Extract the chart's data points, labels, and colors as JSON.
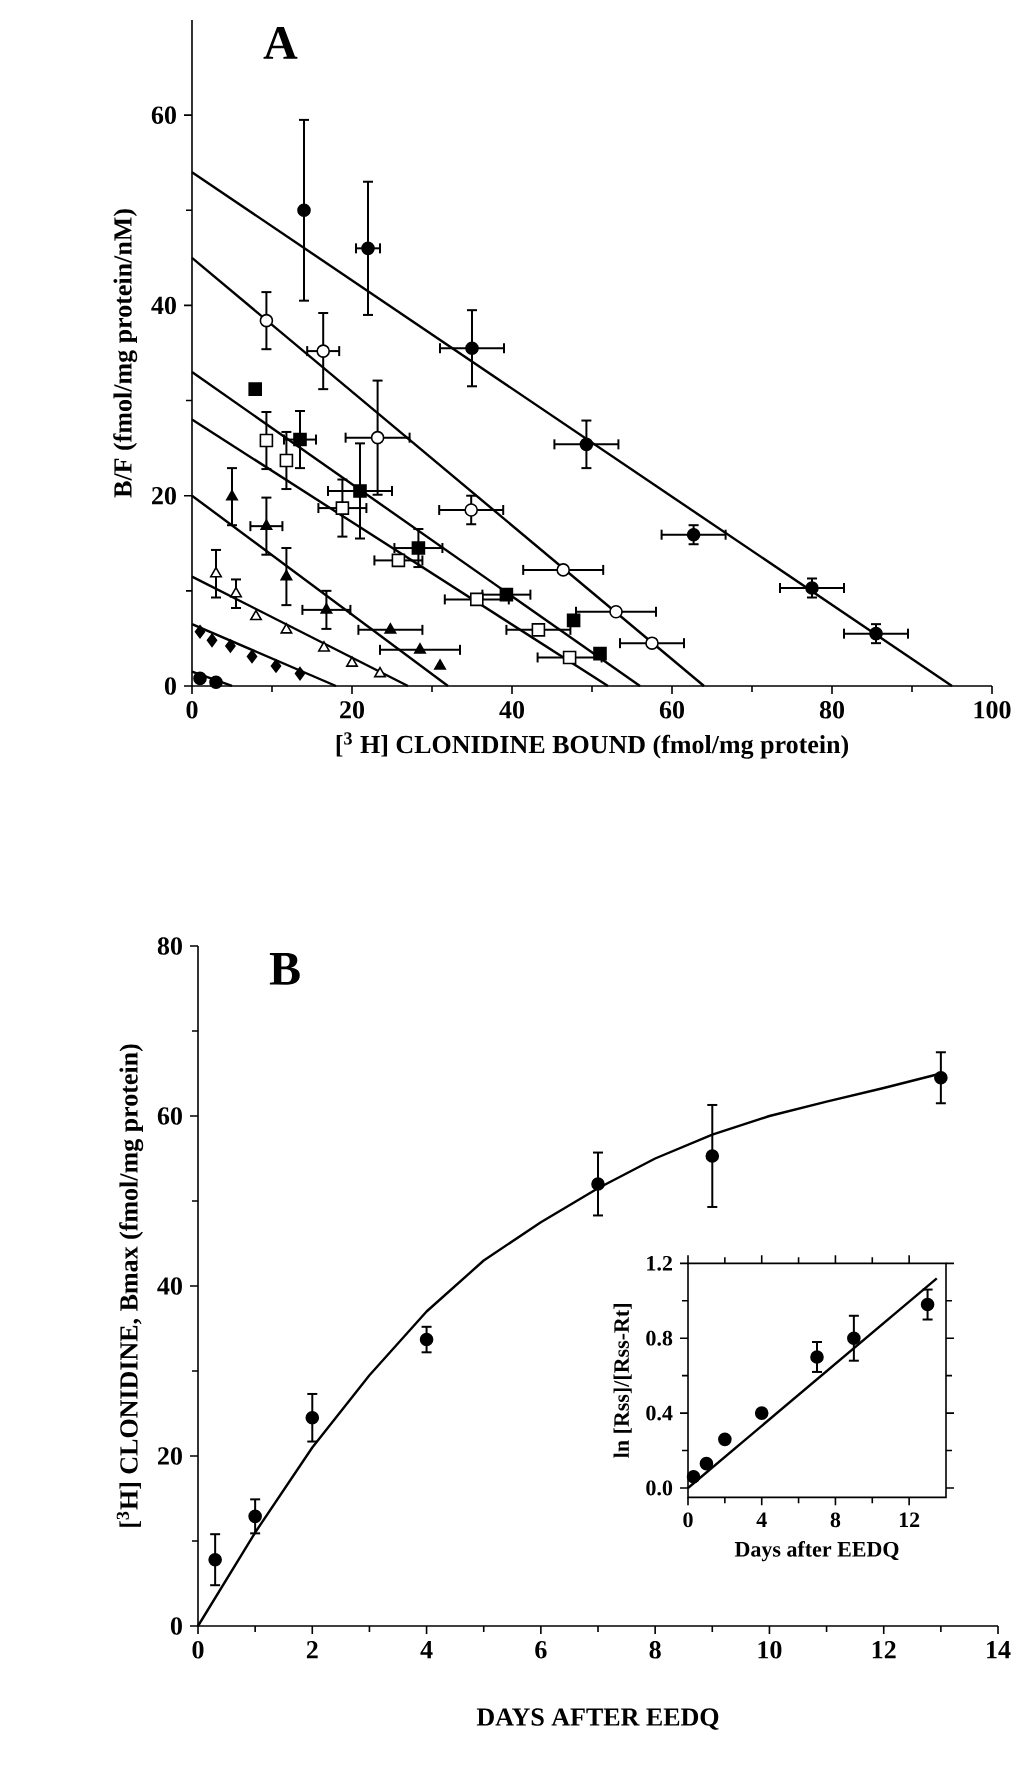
{
  "chart_data": [
    {
      "type": "scatter",
      "title": "A",
      "xlabel": "[$^{3}$ H] CLONIDINE BOUND (fmol/mg protein)",
      "ylabel": "B/F (fmol/mg protein/nM)",
      "xlim": [
        0,
        100
      ],
      "ylim": [
        0,
        70
      ],
      "xticks": [
        0,
        20,
        40,
        60,
        80,
        100
      ],
      "yticks": [
        0,
        20,
        40,
        60
      ],
      "grid": false,
      "series": [
        {
          "color": "#000000",
          "marker": "circle",
          "x": [
            14,
            22,
            35,
            49.3,
            62.7,
            77.5,
            85.5
          ],
          "values": [
            50,
            46,
            35.5,
            25.4,
            15.9,
            10.3,
            5.5
          ],
          "errors": [
            9.5,
            7,
            4,
            2.5,
            1,
            1,
            1
          ],
          "xerrors": [
            null,
            1.5,
            4,
            4,
            4,
            4,
            4
          ]
        },
        {
          "color": "#ffffff",
          "marker": "circle",
          "x": [
            9.3,
            16.4,
            23.2,
            34.9,
            46.4,
            53,
            57.5
          ],
          "values": [
            38.4,
            35.2,
            26.1,
            18.5,
            12.2,
            7.8,
            4.5
          ],
          "errors": [
            3,
            4,
            6,
            1.5,
            null,
            null,
            null
          ],
          "xerrors": [
            null,
            2,
            4,
            4,
            5,
            5,
            4
          ]
        },
        {
          "color": "#000000",
          "marker": "square",
          "x": [
            7.9,
            13.5,
            21,
            28.3,
            39.3,
            47.7,
            51
          ],
          "values": [
            31.2,
            25.9,
            20.5,
            14.5,
            9.6,
            6.9,
            3.4
          ],
          "errors": [
            null,
            3,
            5,
            2,
            null,
            null,
            null
          ],
          "xerrors": [
            null,
            2,
            4,
            3,
            3,
            null,
            null
          ]
        },
        {
          "color": "#ffffff",
          "marker": "square",
          "x": [
            9.3,
            11.8,
            18.8,
            25.8,
            35.6,
            43.3,
            47.2
          ],
          "values": [
            25.8,
            23.7,
            18.7,
            13.2,
            9.1,
            5.9,
            3.0
          ],
          "errors": [
            3,
            3,
            3,
            null,
            null,
            null,
            null
          ],
          "xerrors": [
            null,
            null,
            3,
            3,
            4,
            4,
            4
          ]
        },
        {
          "color": "#000000",
          "marker": "triangle",
          "x": [
            5,
            9.3,
            11.8,
            16.8,
            24.8,
            28.5,
            31
          ],
          "values": [
            19.9,
            16.8,
            11.5,
            8,
            5.9,
            3.8,
            2.1
          ],
          "errors": [
            3,
            3,
            3,
            2,
            null,
            null,
            null
          ],
          "xerrors": [
            null,
            2,
            null,
            3,
            4,
            5,
            null
          ]
        },
        {
          "color": "#ffffff",
          "marker": "triangle",
          "x": [
            3,
            5.5,
            8,
            11.8,
            16.5,
            20,
            23.5
          ],
          "values": [
            11.8,
            9.7,
            7.3,
            5.9,
            4,
            2.4,
            1.3
          ],
          "errors": [
            2.5,
            1.5,
            null,
            null,
            null,
            null,
            null
          ]
        },
        {
          "color": "#000000",
          "marker": "diamond",
          "x": [
            1,
            2.5,
            4.8,
            7.5,
            10.5,
            13.5
          ],
          "values": [
            5.7,
            4.8,
            4.2,
            3.1,
            2.1,
            1.3
          ]
        },
        {
          "color": "#000000",
          "marker": "circle",
          "x": [
            1,
            3
          ],
          "values": [
            0.8,
            0.4
          ]
        },
        {
          "type": "line",
          "color": "#000000",
          "x": [
            0,
            95
          ],
          "values": [
            54,
            0
          ]
        },
        {
          "type": "line",
          "color": "#000000",
          "x": [
            0,
            64
          ],
          "values": [
            45,
            0
          ]
        },
        {
          "type": "line",
          "color": "#000000",
          "x": [
            0,
            56
          ],
          "values": [
            33,
            0
          ]
        },
        {
          "type": "line",
          "color": "#000000",
          "x": [
            0,
            52
          ],
          "values": [
            28,
            0
          ]
        },
        {
          "type": "line",
          "color": "#000000",
          "x": [
            0,
            32
          ],
          "values": [
            20,
            0
          ]
        },
        {
          "type": "line",
          "color": "#000000",
          "x": [
            0,
            27
          ],
          "values": [
            11.5,
            0
          ]
        },
        {
          "type": "line",
          "color": "#000000",
          "x": [
            0,
            18
          ],
          "values": [
            6.5,
            0
          ]
        },
        {
          "type": "line",
          "color": "#000000",
          "x": [
            0,
            5
          ],
          "values": [
            1.5,
            0
          ]
        }
      ]
    },
    {
      "type": "scatter",
      "title": "B",
      "xlabel": "DAYS AFTER EEDQ",
      "ylabel": "[$^{3}$H] CLONIDINE,  Bmax (fmol/mg protein)",
      "xlim": [
        0,
        14
      ],
      "ylim": [
        0,
        80
      ],
      "xticks": [
        0,
        2,
        4,
        6,
        8,
        10,
        12,
        14
      ],
      "yticks": [
        0,
        20,
        40,
        60,
        80
      ],
      "grid": false,
      "series": [
        {
          "type": "line",
          "color": "#000000",
          "x": [
            0,
            1,
            2,
            3,
            4,
            5,
            6,
            7,
            8,
            9,
            10,
            11,
            12,
            13
          ],
          "values": [
            0,
            11,
            21,
            29.5,
            37,
            43,
            47.5,
            51.5,
            55,
            57.8,
            60,
            61.7,
            63.3,
            65
          ]
        },
        {
          "color": "#000000",
          "marker": "circle",
          "x": [
            0.3,
            1,
            2,
            4,
            7,
            9,
            13
          ],
          "values": [
            7.8,
            12.9,
            24.5,
            33.7,
            52,
            55.3,
            64.5
          ],
          "errors": [
            3,
            2,
            2.8,
            1.5,
            3.7,
            6,
            3
          ]
        }
      ]
    },
    {
      "type": "scatter",
      "xlabel": "Days after EEDQ",
      "ylabel": "ln [Rss]/[Rss-Rt]",
      "xlim": [
        0,
        14
      ],
      "ylim": [
        -0.05,
        1.2
      ],
      "xticks": [
        0,
        4,
        8,
        12
      ],
      "yticks": [
        {
          "value": 0,
          "label": "0.0"
        },
        {
          "value": 0.4,
          "label": "0.4"
        },
        {
          "value": 0.8,
          "label": "0.8"
        },
        {
          "value": 1.2,
          "label": "1.2"
        }
      ],
      "grid": false,
      "series": [
        {
          "type": "line",
          "color": "#000000",
          "x": [
            0,
            13.5
          ],
          "values": [
            0,
            1.12
          ]
        },
        {
          "color": "#000000",
          "marker": "circle",
          "x": [
            0.3,
            1,
            2,
            4,
            7,
            9,
            13
          ],
          "values": [
            0.06,
            0.13,
            0.26,
            0.4,
            0.7,
            0.8,
            0.98
          ],
          "errors": [
            null,
            null,
            null,
            null,
            0.08,
            0.12,
            0.08
          ]
        }
      ]
    }
  ]
}
